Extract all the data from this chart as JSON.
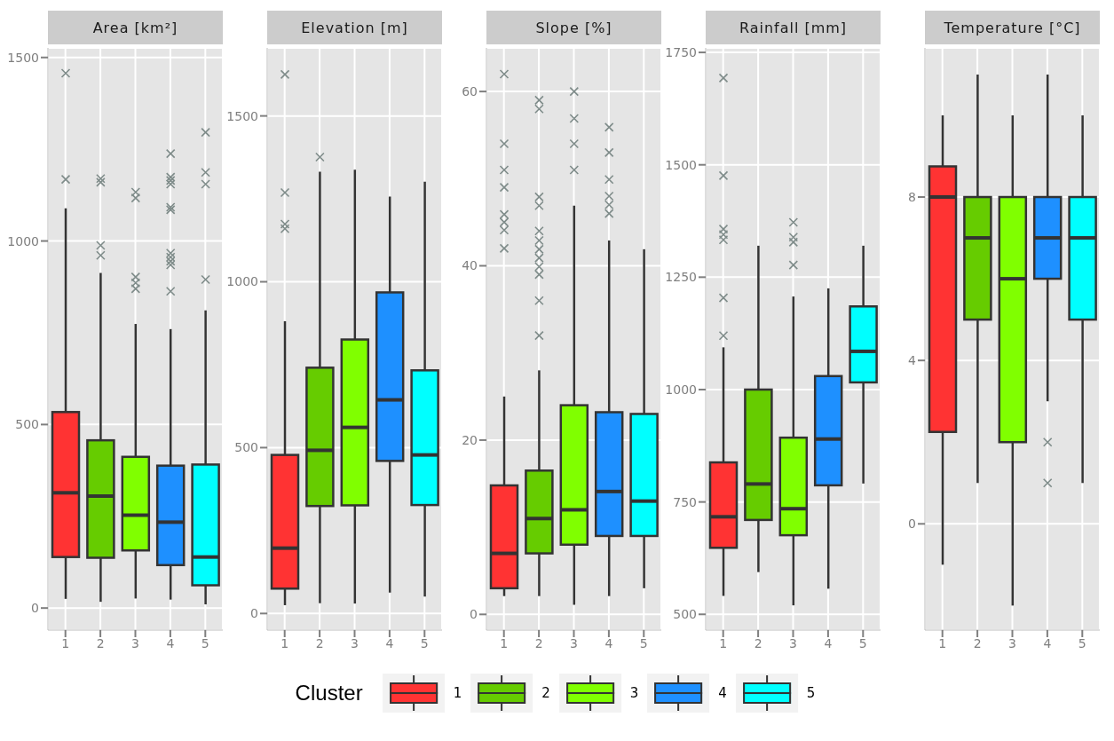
{
  "chart_data": [
    {
      "type": "box",
      "title": "Area [km²]",
      "categories": [
        "1",
        "2",
        "3",
        "4",
        "5"
      ],
      "ylim": [
        -60,
        1526
      ],
      "yticks": [
        0,
        500,
        1000,
        1500
      ],
      "grid": true,
      "series": [
        {
          "name": "1",
          "color": "#ff3333",
          "boxes": [
            {
              "low": 25,
              "q1": 139,
              "median": 314,
              "q3": 534,
              "high": 1089,
              "outliers": [
                1168,
                1457
              ]
            },
            null,
            null,
            null,
            null
          ]
        },
        {
          "name": "2",
          "color": "#66cc00",
          "boxes": [
            null,
            {
              "low": 17,
              "q1": 137,
              "median": 305,
              "q3": 457,
              "high": 913,
              "outliers": [
                1170,
                1160,
                988,
                961
              ]
            },
            null,
            null,
            null
          ]
        },
        {
          "name": "3",
          "color": "#80ff00",
          "boxes": [
            null,
            null,
            {
              "low": 26,
              "q1": 157,
              "median": 253,
              "q3": 412,
              "high": 774,
              "outliers": [
                1133,
                1117,
                902,
                886,
                870
              ]
            },
            null,
            null
          ]
        },
        {
          "name": "4",
          "color": "#1e90ff",
          "boxes": [
            null,
            null,
            null,
            {
              "low": 23,
              "q1": 117,
              "median": 234,
              "q3": 388,
              "high": 760,
              "outliers": [
                1238,
                1174,
                1165,
                1155,
                1092,
                1085,
                967,
                956,
                945,
                935,
                863
              ]
            },
            null
          ]
        },
        {
          "name": "5",
          "color": "#00ffff",
          "boxes": [
            null,
            null,
            null,
            null,
            {
              "low": 10,
              "q1": 62,
              "median": 139,
              "q3": 391,
              "high": 811,
              "outliers": [
                1296,
                1187,
                1155,
                895
              ]
            }
          ]
        }
      ]
    },
    {
      "type": "box",
      "title": "Elevation [m]",
      "categories": [
        "1",
        "2",
        "3",
        "4",
        "5"
      ],
      "ylim": [
        -50,
        1705
      ],
      "yticks": [
        0,
        500,
        1000,
        1500
      ],
      "grid": true,
      "series": [
        {
          "name": "1",
          "color": "#ff3333",
          "boxes": [
            {
              "low": 25,
              "q1": 75,
              "median": 197,
              "q3": 478,
              "high": 881,
              "outliers": [
                1625,
                1269,
                1174,
                1160
              ]
            },
            null,
            null,
            null,
            null
          ]
        },
        {
          "name": "2",
          "color": "#66cc00",
          "boxes": [
            null,
            {
              "low": 31,
              "q1": 324,
              "median": 492,
              "q3": 741,
              "high": 1332,
              "outliers": [
                1376
              ]
            },
            null,
            null,
            null
          ]
        },
        {
          "name": "3",
          "color": "#80ff00",
          "boxes": [
            null,
            null,
            {
              "low": 30,
              "q1": 326,
              "median": 561,
              "q3": 826,
              "high": 1338
            },
            null,
            null
          ]
        },
        {
          "name": "4",
          "color": "#1e90ff",
          "boxes": [
            null,
            null,
            null,
            {
              "low": 63,
              "q1": 460,
              "median": 644,
              "q3": 968,
              "high": 1257
            },
            null
          ]
        },
        {
          "name": "5",
          "color": "#00ffff",
          "boxes": [
            null,
            null,
            null,
            null,
            {
              "low": 51,
              "q1": 327,
              "median": 478,
              "q3": 733,
              "high": 1302
            }
          ]
        }
      ]
    },
    {
      "type": "box",
      "title": "Slope [%]",
      "categories": [
        "1",
        "2",
        "3",
        "4",
        "5"
      ],
      "ylim": [
        -1.8,
        65
      ],
      "yticks": [
        0,
        20,
        40,
        60
      ],
      "grid": true,
      "legend": "bottom",
      "legend_title": "Cluster",
      "series": [
        {
          "name": "1",
          "color": "#ff3333",
          "boxes": [
            {
              "low": 2.1,
              "q1": 3,
              "median": 7,
              "q3": 14.8,
              "high": 25,
              "outliers": [
                62,
                54,
                51,
                49,
                45.9,
                45,
                44.1,
                42
              ]
            },
            null,
            null,
            null,
            null
          ]
        },
        {
          "name": "2",
          "color": "#66cc00",
          "boxes": [
            null,
            {
              "low": 2.1,
              "q1": 7,
              "median": 11,
              "q3": 16.5,
              "high": 28,
              "outliers": [
                59,
                58,
                47.9,
                46.9,
                44,
                42.9,
                41.9,
                40.9,
                39.9,
                39,
                36,
                32
              ]
            },
            null,
            null,
            null
          ]
        },
        {
          "name": "3",
          "color": "#80ff00",
          "boxes": [
            null,
            null,
            {
              "low": 1.1,
              "q1": 8,
              "median": 12,
              "q3": 24,
              "high": 46.9,
              "outliers": [
                60,
                56.9,
                54,
                51
              ]
            },
            null,
            null
          ]
        },
        {
          "name": "4",
          "color": "#1e90ff",
          "boxes": [
            null,
            null,
            null,
            {
              "low": 2.1,
              "q1": 9,
              "median": 14.1,
              "q3": 23.2,
              "high": 42.9,
              "outliers": [
                55.9,
                53,
                49.9,
                48,
                47,
                46
              ]
            },
            null
          ]
        },
        {
          "name": "5",
          "color": "#00ffff",
          "boxes": [
            null,
            null,
            null,
            null,
            {
              "low": 3,
              "q1": 9,
              "median": 13,
              "q3": 23,
              "high": 41.9
            }
          ]
        }
      ]
    },
    {
      "type": "box",
      "title": "Rainfall [mm]",
      "categories": [
        "1",
        "2",
        "3",
        "4",
        "5"
      ],
      "ylim": [
        465,
        1760
      ],
      "yticks": [
        500,
        750,
        1000,
        1250,
        1500,
        1750
      ],
      "grid": true,
      "series": [
        {
          "name": "1",
          "color": "#ff3333",
          "boxes": [
            {
              "low": 541,
              "q1": 648,
              "median": 717,
              "q3": 838,
              "high": 1094,
              "outliers": [
                1693,
                1476,
                1357,
                1345,
                1333,
                1204,
                1120
              ]
            },
            null,
            null,
            null,
            null
          ]
        },
        {
          "name": "2",
          "color": "#66cc00",
          "boxes": [
            null,
            {
              "low": 594,
              "q1": 710,
              "median": 790,
              "q3": 1000,
              "high": 1320
            },
            null,
            null,
            null
          ]
        },
        {
          "name": "3",
          "color": "#80ff00",
          "boxes": [
            null,
            null,
            {
              "low": 520,
              "q1": 676,
              "median": 735,
              "q3": 893,
              "high": 1207,
              "outliers": [
                1372,
                1339,
                1328,
                1277
              ]
            },
            null,
            null
          ]
        },
        {
          "name": "4",
          "color": "#1e90ff",
          "boxes": [
            null,
            null,
            null,
            {
              "low": 557,
              "q1": 787,
              "median": 890,
              "q3": 1030,
              "high": 1225
            },
            null
          ]
        },
        {
          "name": "5",
          "color": "#00ffff",
          "boxes": [
            null,
            null,
            null,
            null,
            {
              "low": 791,
              "q1": 1016,
              "median": 1085,
              "q3": 1185,
              "high": 1320
            }
          ]
        }
      ]
    },
    {
      "type": "box",
      "title": "Temperature [°C]",
      "categories": [
        "1",
        "2",
        "3",
        "4",
        "5"
      ],
      "ylim": [
        -2.6,
        11.65
      ],
      "yticks": [
        0,
        4,
        8
      ],
      "grid": true,
      "series": [
        {
          "name": "1",
          "color": "#ff3333",
          "boxes": [
            {
              "low": -1,
              "q1": 2.25,
              "median": 8,
              "q3": 8.75,
              "high": 10
            },
            null,
            null,
            null,
            null
          ]
        },
        {
          "name": "2",
          "color": "#66cc00",
          "boxes": [
            null,
            {
              "low": 1,
              "q1": 5,
              "median": 7,
              "q3": 8,
              "high": 11
            },
            null,
            null,
            null
          ]
        },
        {
          "name": "3",
          "color": "#80ff00",
          "boxes": [
            null,
            null,
            {
              "low": -2,
              "q1": 2,
              "median": 6,
              "q3": 8,
              "high": 10
            },
            null,
            null
          ]
        },
        {
          "name": "4",
          "color": "#1e90ff",
          "boxes": [
            null,
            null,
            null,
            {
              "low": 3,
              "q1": 6,
              "median": 7,
              "q3": 8,
              "high": 11,
              "outliers": [
                2,
                1
              ]
            },
            null
          ]
        },
        {
          "name": "5",
          "color": "#00ffff",
          "boxes": [
            null,
            null,
            null,
            null,
            {
              "low": 1,
              "q1": 5,
              "median": 7,
              "q3": 8,
              "high": 10
            }
          ]
        }
      ]
    }
  ]
}
